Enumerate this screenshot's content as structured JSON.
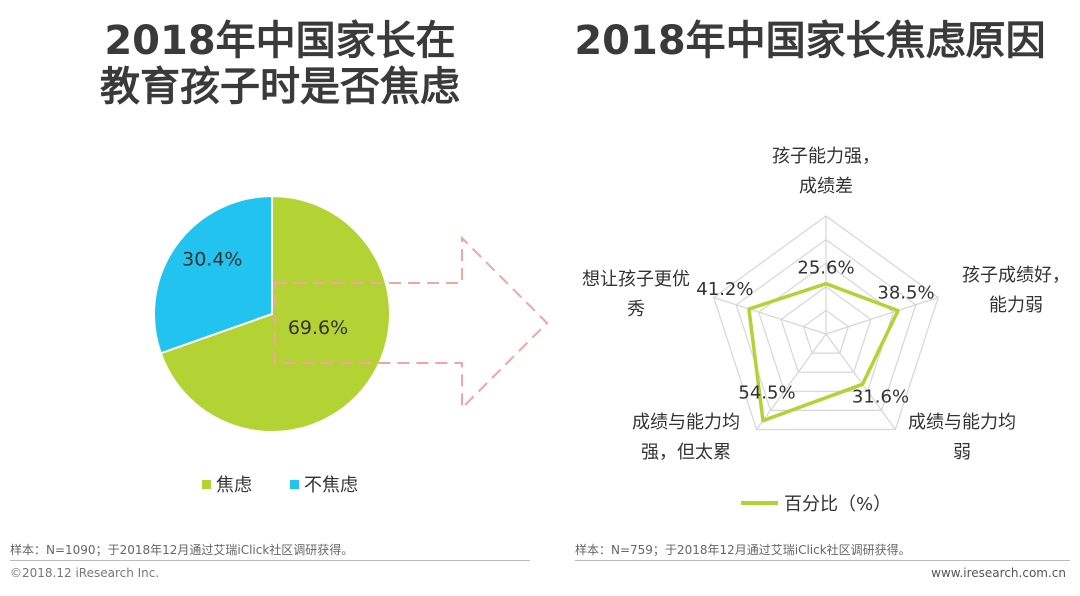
{
  "titles": {
    "left": [
      "2018年中国家长在",
      "教育孩子时是否焦虑"
    ],
    "right": "2018年中国家长焦虑原因"
  },
  "colors": {
    "green": "#b3d334",
    "blue": "#22c3ee",
    "dashed_arrow": "#f3a4a4",
    "grid": "#d6d6d6"
  },
  "chart_data": [
    {
      "type": "pie",
      "title": "2018年中国家长在教育孩子时是否焦虑",
      "slices": [
        {
          "label": "焦虑",
          "value": 69.6,
          "value_label": "69.6%",
          "color": "#b3d334"
        },
        {
          "label": "不焦虑",
          "value": 30.4,
          "value_label": "30.4%",
          "color": "#22c3ee"
        }
      ],
      "legend_position": "bottom"
    },
    {
      "type": "radar",
      "title": "2018年中国家长焦虑原因",
      "series": [
        {
          "name": "百分比（%）",
          "color": "#b3d334",
          "values": [
            25.6,
            38.5,
            31.6,
            54.5,
            41.2
          ],
          "value_labels": [
            "25.6%",
            "38.5%",
            "31.6%",
            "54.5%",
            "41.2%"
          ]
        }
      ],
      "categories": [
        [
          "孩子能力强，",
          "成绩差"
        ],
        [
          "孩子成绩好，",
          "能力弱"
        ],
        [
          "成绩与能力均",
          "弱"
        ],
        [
          "成绩与能力均",
          "强，但太累"
        ],
        [
          "想让孩子更优",
          "秀"
        ]
      ],
      "rmax": 60,
      "grid_levels": 5,
      "legend_position": "bottom"
    }
  ],
  "footnotes": {
    "left": "样本：N=1090；于2018年12月通过艾瑞iClick社区调研获得。",
    "right": "样本：N=759；于2018年12月通过艾瑞iClick社区调研获得。"
  },
  "copyright": "©2018.12 iResearch Inc.",
  "website": "www.iresearch.com.cn"
}
